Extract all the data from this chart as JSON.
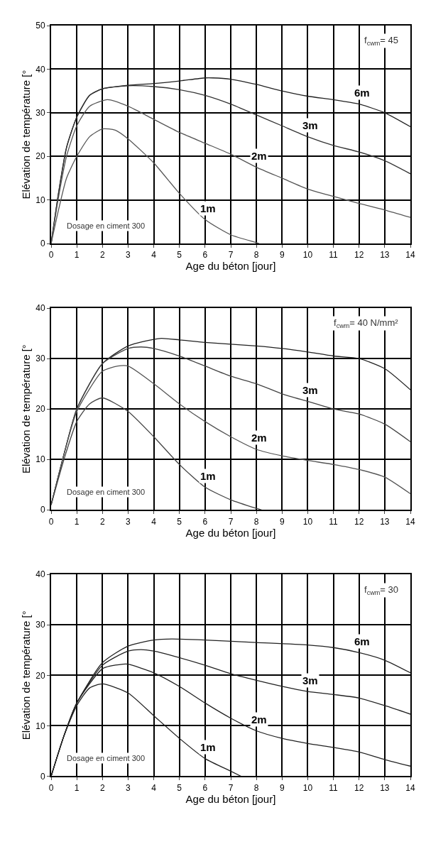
{
  "chart_data": [
    {
      "type": "line",
      "xlabel": "Age du béton [jour]",
      "ylabel": "Elévation de température [°",
      "xlim": [
        0,
        14
      ],
      "xticks": [
        0,
        1,
        2,
        3,
        4,
        5,
        6,
        7,
        8,
        9,
        10,
        11,
        12,
        13,
        14
      ],
      "ylim": [
        0,
        50
      ],
      "yticks": [
        0,
        10,
        20,
        30,
        40,
        50
      ],
      "grid": true,
      "legend": false,
      "marker": "none",
      "line_style": "solid",
      "series": [
        {
          "name": "6m",
          "color": "#222222",
          "x": [
            0,
            0.3,
            0.6,
            1,
            1.5,
            2,
            3,
            4,
            5,
            6,
            6.3,
            7,
            8,
            9,
            10,
            11,
            12,
            13,
            14
          ],
          "values": [
            0,
            12,
            22,
            29,
            34,
            35.5,
            36.3,
            36.7,
            37.3,
            38,
            38,
            37.7,
            36.5,
            35,
            33.8,
            33,
            32,
            30,
            26.8
          ]
        },
        {
          "name": "3m",
          "color": "#333333",
          "x": [
            0,
            0.3,
            0.6,
            1,
            1.5,
            2,
            3,
            4,
            5,
            6,
            7,
            8,
            9,
            10,
            11,
            12,
            13,
            14
          ],
          "values": [
            0,
            12,
            22,
            29,
            34,
            35.5,
            36.2,
            36,
            35.3,
            34,
            32,
            29.5,
            27,
            24.5,
            22.5,
            21,
            19,
            16
          ]
        },
        {
          "name": "2m",
          "color": "#555555",
          "x": [
            0,
            0.3,
            0.6,
            1,
            1.5,
            2.2,
            3,
            4,
            5,
            6,
            7,
            8,
            9,
            10,
            11,
            12,
            13,
            14
          ],
          "values": [
            0,
            11,
            20,
            27,
            31.5,
            33,
            31.5,
            28.5,
            25.5,
            23,
            20.5,
            17.5,
            15,
            12.5,
            10.8,
            9.2,
            7.7,
            6
          ]
        },
        {
          "name": "1m",
          "color": "#555555",
          "x": [
            0,
            0.3,
            0.6,
            1,
            1.5,
            2,
            2.5,
            3,
            4,
            5,
            6,
            7,
            8,
            8.1
          ],
          "values": [
            0,
            8,
            15,
            20,
            24.5,
            26.3,
            26,
            24,
            18.5,
            11.5,
            5.5,
            2,
            0.2,
            0
          ]
        }
      ],
      "annotations": [
        "f$_{cwm}$= 45",
        "Dosage en ciment 300"
      ]
    },
    {
      "type": "line",
      "xlabel": "Age du béton [jour]",
      "ylabel": "Elévation de température [°",
      "xlim": [
        0,
        14
      ],
      "xticks": [
        0,
        1,
        2,
        3,
        4,
        5,
        6,
        7,
        8,
        9,
        10,
        11,
        12,
        13,
        14
      ],
      "ylim": [
        0,
        40
      ],
      "yticks": [
        0,
        10,
        20,
        30,
        40
      ],
      "grid": true,
      "legend": false,
      "marker": "none",
      "line_style": "solid",
      "series": [
        {
          "color": "#222222",
          "x": [
            0,
            0.5,
            1,
            2,
            3,
            4,
            4.3,
            5,
            6,
            8,
            9,
            10,
            11,
            12,
            13,
            14
          ],
          "values": [
            1,
            11,
            20,
            29,
            32.5,
            33.8,
            34,
            33.7,
            33.2,
            32.5,
            32,
            31.3,
            30.5,
            30,
            28,
            23.8
          ]
        },
        {
          "name": "3m",
          "color": "#444444",
          "x": [
            0,
            0.5,
            1,
            2,
            3,
            3.5,
            4,
            5,
            6,
            7,
            8,
            9,
            10,
            11,
            12,
            13,
            14
          ],
          "values": [
            1,
            11,
            20,
            29,
            32,
            32.3,
            32,
            30.5,
            28.5,
            26.5,
            25,
            23,
            21.5,
            20,
            19,
            17,
            13.5
          ]
        },
        {
          "name": "2m",
          "color": "#555555",
          "x": [
            0,
            0.5,
            1,
            2,
            2.6,
            3,
            4,
            5,
            6,
            7,
            8,
            9,
            10,
            11,
            12,
            13,
            14
          ],
          "values": [
            1,
            11,
            19.5,
            27.5,
            28.5,
            28.5,
            25,
            21,
            17.5,
            14.5,
            12,
            10.7,
            9.8,
            9,
            8,
            6.5,
            3.2
          ]
        },
        {
          "name": "1m",
          "color": "#444444",
          "x": [
            0,
            0.5,
            1,
            1.5,
            2,
            3,
            4,
            5,
            6,
            7,
            8,
            8.2
          ],
          "values": [
            1,
            10,
            17.5,
            21,
            22.2,
            19.5,
            14.5,
            9,
            4.5,
            2,
            0.3,
            0
          ]
        }
      ],
      "annotations": [
        "f$_{cwm}$= 40 N/mm²",
        "Dosage en ciment 300"
      ]
    },
    {
      "type": "line",
      "xlabel": "Age du béton [jour]",
      "ylabel": "Elévation de température [°",
      "xlim": [
        0,
        14
      ],
      "xticks": [
        0,
        1,
        2,
        3,
        4,
        5,
        6,
        7,
        8,
        9,
        10,
        11,
        12,
        13,
        14
      ],
      "ylim": [
        0,
        40
      ],
      "yticks": [
        0,
        10,
        20,
        30,
        40
      ],
      "grid": true,
      "legend": false,
      "marker": "none",
      "line_style": "solid",
      "series": [
        {
          "name": "6m",
          "color": "#222222",
          "x": [
            0,
            0.5,
            1,
            2,
            3,
            4,
            4.7,
            6,
            8,
            10,
            11,
            12,
            13,
            14
          ],
          "values": [
            0,
            8,
            14.5,
            22.5,
            25.8,
            27,
            27.2,
            27,
            26.5,
            26,
            25.5,
            24.5,
            23,
            20.5
          ]
        },
        {
          "name": "3m",
          "color": "#222222",
          "x": [
            0,
            0.5,
            1,
            2,
            3,
            3.5,
            4,
            5,
            6,
            7,
            8,
            9,
            10,
            11,
            12,
            13,
            14
          ],
          "values": [
            0,
            8,
            14.5,
            22,
            24.8,
            25.1,
            24.8,
            23.5,
            22,
            20.3,
            19,
            17.8,
            16.8,
            16.2,
            15.5,
            14,
            12.3
          ]
        },
        {
          "name": "2m",
          "color": "#222222",
          "x": [
            0,
            0.5,
            1,
            2,
            2.8,
            3,
            4,
            5,
            6,
            7,
            8,
            9,
            10,
            11,
            12,
            13,
            14
          ],
          "values": [
            0,
            8,
            14.5,
            21.3,
            22.2,
            22.2,
            20.5,
            17.8,
            14.5,
            11.5,
            9,
            7.5,
            6.5,
            5.7,
            4.8,
            3.3,
            2
          ]
        },
        {
          "name": "1m",
          "color": "#222222",
          "x": [
            0,
            0.5,
            1,
            1.5,
            2,
            3,
            4,
            5,
            6,
            7,
            7.4
          ],
          "values": [
            0,
            8,
            14,
            17.5,
            18.3,
            16.5,
            12,
            7.5,
            3.5,
            1,
            0
          ]
        }
      ],
      "annotations": [
        "f$_{cwm}$= 30",
        "Dosage en ciment 300"
      ]
    }
  ]
}
